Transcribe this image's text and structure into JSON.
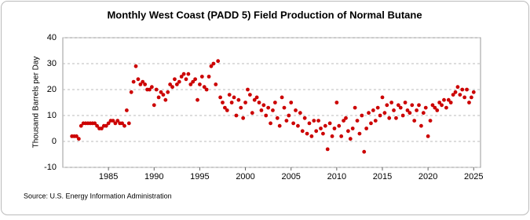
{
  "chart_data": {
    "type": "scatter",
    "title": "Monthly West Coast (PADD 5) Field Production of Normal Butane",
    "y_label": "Thousand Barrels per Day",
    "source": "Source: U.S. Energy Information Administration",
    "color": "#cc0000",
    "grid": true,
    "xlim": [
      1980,
      2025.75
    ],
    "ylim": [
      -10,
      40
    ],
    "xticks": [
      1985,
      1990,
      1995,
      2000,
      2005,
      2010,
      2015,
      2020,
      2025
    ],
    "yticks": [
      -10,
      0,
      10,
      20,
      30,
      40
    ],
    "x": [
      1981,
      1981.25,
      1981.5,
      1981.75,
      1982,
      1982.25,
      1982.5,
      1982.75,
      1983,
      1983.25,
      1983.5,
      1983.75,
      1984,
      1984.25,
      1984.5,
      1984.75,
      1985,
      1985.25,
      1985.5,
      1985.75,
      1986,
      1986.25,
      1986.5,
      1986.75,
      1987,
      1987.25,
      1987.5,
      1987.75,
      1988,
      1988.25,
      1988.5,
      1988.75,
      1989,
      1989.25,
      1989.5,
      1989.75,
      1990,
      1990.25,
      1990.5,
      1990.75,
      1991,
      1991.25,
      1991.5,
      1991.75,
      1992,
      1992.25,
      1992.5,
      1992.75,
      1993,
      1993.25,
      1993.5,
      1993.75,
      1994,
      1994.25,
      1994.5,
      1994.75,
      1995,
      1995.25,
      1995.5,
      1995.75,
      1996,
      1996.25,
      1996.5,
      1996.75,
      1997,
      1997.25,
      1997.5,
      1997.75,
      1998,
      1998.25,
      1998.5,
      1998.75,
      1999,
      1999.25,
      1999.5,
      1999.75,
      2000,
      2000.25,
      2000.5,
      2000.75,
      2001,
      2001.25,
      2001.5,
      2001.75,
      2002,
      2002.25,
      2002.5,
      2002.75,
      2003,
      2003.25,
      2003.5,
      2003.75,
      2004,
      2004.25,
      2004.5,
      2004.75,
      2005,
      2005.25,
      2005.5,
      2005.75,
      2006,
      2006.25,
      2006.5,
      2006.75,
      2007,
      2007.25,
      2007.5,
      2007.75,
      2008,
      2008.25,
      2008.5,
      2008.75,
      2009,
      2009.25,
      2009.5,
      2009.75,
      2010,
      2010.25,
      2010.5,
      2010.75,
      2011,
      2011.25,
      2011.5,
      2011.75,
      2012,
      2012.25,
      2012.5,
      2012.75,
      2013,
      2013.25,
      2013.5,
      2013.75,
      2014,
      2014.25,
      2014.5,
      2014.75,
      2015,
      2015.25,
      2015.5,
      2015.75,
      2016,
      2016.25,
      2016.5,
      2016.75,
      2017,
      2017.25,
      2017.5,
      2017.75,
      2018,
      2018.25,
      2018.5,
      2018.75,
      2019,
      2019.25,
      2019.5,
      2019.75,
      2020,
      2020.25,
      2020.5,
      2020.75,
      2021,
      2021.25,
      2021.5,
      2021.75,
      2022,
      2022.25,
      2022.5,
      2022.75,
      2023,
      2023.25,
      2023.5,
      2023.75,
      2024,
      2024.25,
      2024.5,
      2024.75,
      2025
    ],
    "values": [
      2,
      2,
      2,
      1,
      6,
      7,
      7,
      7,
      7,
      7,
      7,
      6,
      5,
      5,
      6,
      6,
      7,
      8,
      8,
      7,
      8,
      7,
      7,
      6,
      12,
      7,
      19,
      23,
      29,
      24,
      22,
      23,
      22,
      20,
      20,
      21,
      14,
      20,
      17,
      19,
      18,
      16,
      19,
      22,
      21,
      24,
      22,
      23,
      25,
      26,
      24,
      26,
      22,
      23,
      24,
      16,
      22,
      25,
      21,
      20,
      25,
      29,
      30,
      22,
      31,
      17,
      15,
      13,
      12,
      18,
      15,
      17,
      10,
      16,
      13,
      9,
      15,
      20,
      18,
      11,
      16,
      17,
      15,
      12,
      14,
      10,
      13,
      7,
      12,
      15,
      9,
      6,
      17,
      13,
      8,
      10,
      15,
      7,
      12,
      6,
      11,
      4,
      9,
      3,
      7,
      2,
      8,
      4,
      8,
      5,
      3,
      6,
      -3,
      7,
      2,
      5,
      15,
      6,
      2,
      8,
      9,
      4,
      1,
      5,
      13,
      8,
      3,
      10,
      -4,
      5,
      11,
      7,
      12,
      8,
      13,
      10,
      17,
      11,
      14,
      9,
      15,
      12,
      9,
      14,
      13,
      10,
      15,
      12,
      11,
      14,
      8,
      12,
      14,
      6,
      11,
      13,
      2,
      8,
      14,
      13,
      12,
      15,
      14,
      16,
      13,
      16,
      15,
      18,
      19,
      21,
      18,
      20,
      17,
      20,
      15,
      17,
      19
    ]
  }
}
